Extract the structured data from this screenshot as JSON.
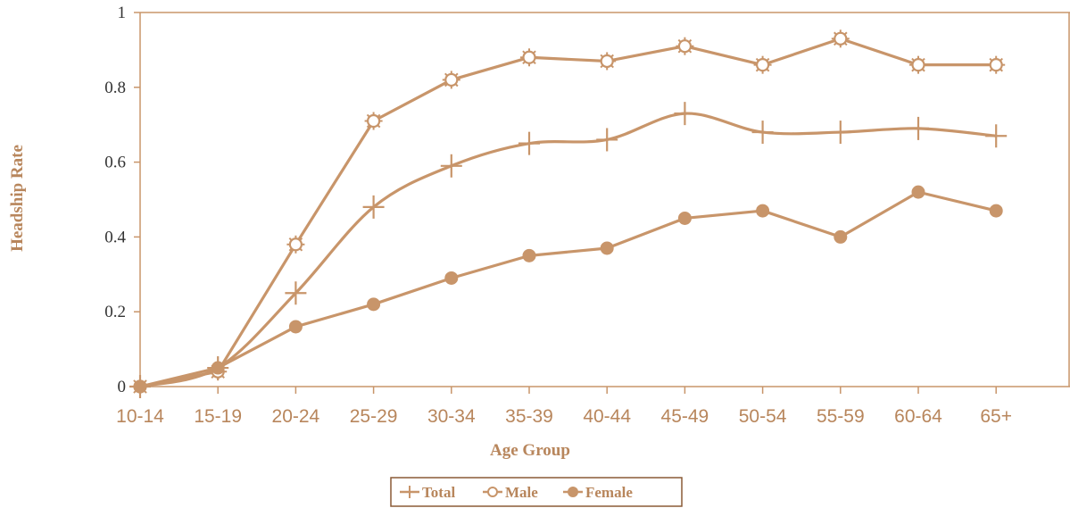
{
  "chart_data": {
    "type": "line",
    "title": "",
    "xlabel": "Age Group",
    "ylabel": "Headship Rate",
    "categories": [
      "10-14",
      "15-19",
      "20-24",
      "25-29",
      "30-34",
      "35-39",
      "40-44",
      "45-49",
      "50-54",
      "55-59",
      "60-64",
      "65+"
    ],
    "ylim": [
      0,
      1
    ],
    "yticks": [
      "0",
      "0.2",
      "0.4",
      "0.6",
      "0.8",
      "1"
    ],
    "grid": false,
    "legend_position": "bottom-center",
    "series": [
      {
        "name": "Total",
        "marker": "plus",
        "smooth": true,
        "values": [
          0,
          0.05,
          0.25,
          0.48,
          0.59,
          0.65,
          0.66,
          0.73,
          0.68,
          0.68,
          0.69,
          0.67
        ]
      },
      {
        "name": "Male",
        "marker": "star-circle",
        "smooth": false,
        "values": [
          0,
          0.04,
          0.38,
          0.71,
          0.82,
          0.88,
          0.87,
          0.91,
          0.86,
          0.93,
          0.86,
          0.86
        ]
      },
      {
        "name": "Female",
        "marker": "circle",
        "smooth": false,
        "values": [
          0,
          0.05,
          0.16,
          0.22,
          0.29,
          0.35,
          0.37,
          0.45,
          0.47,
          0.4,
          0.52,
          0.47
        ]
      }
    ],
    "colors": {
      "line": "#c8956a",
      "text": "#b8865c",
      "marker": "#c8956a",
      "axis": "#c8956a"
    }
  }
}
